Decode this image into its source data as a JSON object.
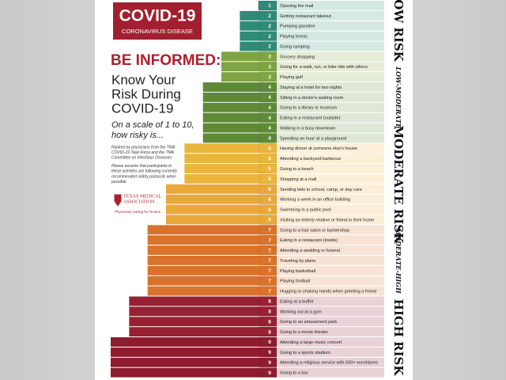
{
  "chart_data": {
    "type": "bar",
    "orientation": "horizontal",
    "title": "COVID-19",
    "subtitle": "CORONAVIRUS DISEASE",
    "headline": "BE INFORMED:",
    "heading_lines": [
      "Know Your",
      "Risk During",
      "COVID-19"
    ],
    "question_lines": [
      "On a scale of 1 to 10,",
      "how risky is..."
    ],
    "note_lines": [
      "Ranked by physicians from the TMA",
      "COVID-19 Task Force and the TMA",
      "Committee on Infectious Diseases.",
      "Please assume that participants in",
      "these activities are following currently",
      "recommended safety protocols when",
      "possible."
    ],
    "logo_lines": [
      "TEXAS MEDICAL",
      "ASSOCIATION"
    ],
    "logo_tagline": "Physicians Caring for Texans",
    "risk_levels": [
      "LOW RISK",
      "LOW-MODERATE",
      "MODERATE RISK",
      "MODERATE-HIGH",
      "HIGH RISK"
    ],
    "categories": [
      "Opening the mail",
      "Getting restaurant takeout",
      "Pumping gasoline",
      "Playing tennis",
      "Going camping",
      "Grocery shopping",
      "Going for a walk, run, or bike ride with others",
      "Playing golf",
      "Staying at a hotel for two nights",
      "Sitting in a doctor's waiting room",
      "Going to a library or museum",
      "Eating in a restaurant (outside)",
      "Walking in a busy downtown",
      "Spending an hour at a playground",
      "Having dinner at someone else's house",
      "Attending a backyard barbecue",
      "Going to a beach",
      "Shopping at a mall",
      "Sending kids to school, camp, or day care",
      "Working a week in an office building",
      "Swimming in a public pool",
      "Visiting an elderly relative or friend in their home",
      "Going to a hair salon or barbershop",
      "Eating in a restaurant (inside)",
      "Attending a wedding or funeral",
      "Traveling by plane",
      "Playing basketball",
      "Playing football",
      "Hugging or shaking hands when greeting a friend",
      "Eating at a buffet",
      "Working out at a gym",
      "Going to an amusement park",
      "Going to a movie theater",
      "Attending a large music concert",
      "Going to a sports stadium",
      "Attending a religious service with 500+ worshipers",
      "Going to a bar"
    ],
    "values": [
      1,
      2,
      2,
      2,
      2,
      3,
      3,
      3,
      4,
      4,
      4,
      4,
      4,
      4,
      5,
      5,
      5,
      5,
      6,
      6,
      6,
      6,
      7,
      7,
      7,
      7,
      7,
      7,
      7,
      8,
      8,
      8,
      8,
      9,
      9,
      9,
      9
    ],
    "colors": [
      "#2f8a78",
      "#2f8a78",
      "#2f8a78",
      "#2f8a78",
      "#2f8a78",
      "#7ea443",
      "#7ea443",
      "#7ea443",
      "#5e8a37",
      "#5e8a37",
      "#5e8a37",
      "#5e8a37",
      "#5e8a37",
      "#5e8a37",
      "#eab53c",
      "#eab53c",
      "#eab53c",
      "#eab53c",
      "#e9a83a",
      "#e9a83a",
      "#e9a83a",
      "#e9a83a",
      "#d9732b",
      "#d9732b",
      "#d9732b",
      "#d9732b",
      "#d9732b",
      "#d9732b",
      "#d9732b",
      "#982032",
      "#982032",
      "#982032",
      "#982032",
      "#8d1c2e",
      "#8d1c2e",
      "#8d1c2e",
      "#8d1c2e"
    ]
  }
}
